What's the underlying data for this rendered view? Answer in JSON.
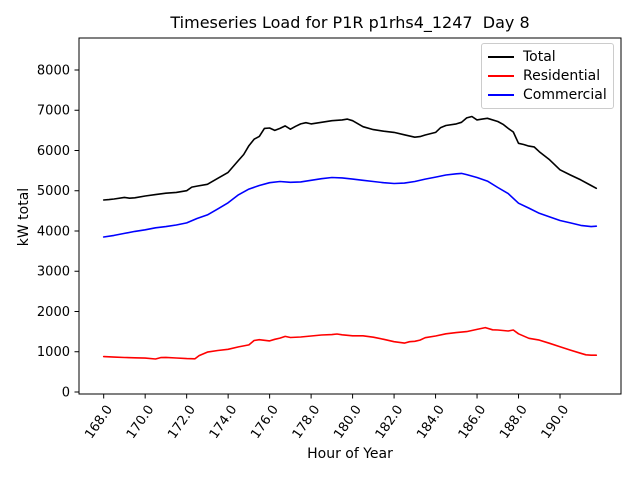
{
  "figure": {
    "title": "Timeseries Load for P1R p1rhs4_1247  Day 8",
    "xlabel": "Hour of Year",
    "ylabel": "kW total"
  },
  "chart_data": {
    "type": "line",
    "title": "Timeseries Load for P1R p1rhs4_1247  Day 8",
    "xlabel": "Hour of Year",
    "ylabel": "kW total",
    "grid": false,
    "legend_position": "upper right",
    "xlim": [
      166.81,
      192.94
    ],
    "ylim": [
      -50,
      8795
    ],
    "xticks": {
      "values": [
        168,
        170,
        172,
        174,
        176,
        178,
        180,
        182,
        184,
        186,
        188,
        190
      ],
      "labels": [
        "168.0",
        "170.0",
        "172.0",
        "174.0",
        "176.0",
        "178.0",
        "180.0",
        "182.0",
        "184.0",
        "186.0",
        "188.0",
        "190.0"
      ],
      "rotation_deg": 55
    },
    "yticks": {
      "values": [
        0,
        1000,
        2000,
        3000,
        4000,
        5000,
        6000,
        7000,
        8000
      ],
      "labels": [
        "0",
        "1000",
        "2000",
        "3000",
        "4000",
        "5000",
        "6000",
        "7000",
        "8000"
      ]
    },
    "series": [
      {
        "name": "Total",
        "color": "#000000",
        "x": [
          168.0,
          168.25,
          168.5,
          169.0,
          169.25,
          169.5,
          170.0,
          170.5,
          171.0,
          171.5,
          172.0,
          172.25,
          172.5,
          173.0,
          173.5,
          174.0,
          174.5,
          174.75,
          175.0,
          175.25,
          175.5,
          175.75,
          176.0,
          176.25,
          176.5,
          176.75,
          177.0,
          177.25,
          177.5,
          177.75,
          178.0,
          178.5,
          179.0,
          179.5,
          179.75,
          180.0,
          180.5,
          181.0,
          181.5,
          182.0,
          182.5,
          183.0,
          183.25,
          183.5,
          184.0,
          184.25,
          184.5,
          185.0,
          185.25,
          185.5,
          185.75,
          186.0,
          186.25,
          186.5,
          187.0,
          187.25,
          187.5,
          187.75,
          188.0,
          188.25,
          188.5,
          188.75,
          189.0,
          189.5,
          190.0,
          190.5,
          191.0,
          191.5,
          191.75
        ],
        "y": [
          4770,
          4780,
          4795,
          4835,
          4815,
          4825,
          4870,
          4905,
          4940,
          4960,
          5000,
          5090,
          5115,
          5160,
          5310,
          5455,
          5755,
          5900,
          6120,
          6280,
          6350,
          6550,
          6560,
          6500,
          6550,
          6610,
          6530,
          6600,
          6660,
          6690,
          6660,
          6700,
          6740,
          6760,
          6780,
          6740,
          6590,
          6520,
          6480,
          6450,
          6390,
          6330,
          6345,
          6385,
          6450,
          6570,
          6620,
          6660,
          6700,
          6810,
          6845,
          6760,
          6780,
          6800,
          6720,
          6650,
          6550,
          6460,
          6180,
          6150,
          6110,
          6090,
          5970,
          5770,
          5520,
          5390,
          5270,
          5130,
          5060
        ]
      },
      {
        "name": "Residential",
        "color": "#ff0000",
        "x": [
          168.0,
          168.5,
          169.0,
          169.5,
          170.0,
          170.5,
          170.75,
          171.0,
          171.5,
          172.0,
          172.4,
          172.6,
          173.0,
          173.5,
          174.0,
          174.5,
          175.0,
          175.25,
          175.5,
          176.0,
          176.25,
          176.5,
          176.75,
          177.0,
          177.5,
          178.0,
          178.5,
          179.0,
          179.25,
          179.5,
          180.0,
          180.5,
          181.0,
          181.5,
          182.0,
          182.5,
          182.75,
          183.0,
          183.25,
          183.5,
          184.0,
          184.5,
          185.0,
          185.5,
          186.0,
          186.4,
          186.75,
          187.0,
          187.5,
          187.75,
          188.0,
          188.5,
          189.0,
          189.5,
          190.0,
          190.5,
          191.0,
          191.25,
          191.5,
          191.75
        ],
        "y": [
          880,
          868,
          858,
          850,
          842,
          820,
          855,
          860,
          845,
          830,
          825,
          905,
          990,
          1030,
          1060,
          1120,
          1170,
          1280,
          1300,
          1270,
          1310,
          1340,
          1380,
          1355,
          1365,
          1390,
          1415,
          1425,
          1440,
          1420,
          1395,
          1395,
          1360,
          1310,
          1250,
          1215,
          1250,
          1260,
          1290,
          1350,
          1390,
          1445,
          1475,
          1500,
          1555,
          1600,
          1545,
          1540,
          1515,
          1540,
          1445,
          1335,
          1290,
          1210,
          1125,
          1040,
          960,
          925,
          915,
          915
        ]
      },
      {
        "name": "Commercial",
        "color": "#0000ff",
        "x": [
          168.0,
          168.5,
          169.0,
          169.5,
          170.0,
          170.5,
          171.0,
          171.5,
          172.0,
          172.5,
          173.0,
          173.5,
          174.0,
          174.5,
          175.0,
          175.5,
          176.0,
          176.5,
          177.0,
          177.5,
          178.0,
          178.5,
          179.0,
          179.5,
          180.0,
          180.5,
          181.0,
          181.5,
          182.0,
          182.5,
          183.0,
          183.5,
          184.0,
          184.5,
          185.0,
          185.25,
          185.5,
          186.0,
          186.5,
          187.0,
          187.5,
          188.0,
          188.5,
          189.0,
          189.5,
          190.0,
          190.5,
          191.0,
          191.5,
          191.75
        ],
        "y": [
          3850,
          3890,
          3940,
          3990,
          4030,
          4080,
          4110,
          4150,
          4200,
          4310,
          4400,
          4550,
          4700,
          4900,
          5040,
          5130,
          5200,
          5230,
          5210,
          5220,
          5260,
          5300,
          5330,
          5320,
          5290,
          5260,
          5230,
          5200,
          5180,
          5190,
          5230,
          5290,
          5340,
          5390,
          5420,
          5430,
          5400,
          5330,
          5240,
          5080,
          4930,
          4690,
          4570,
          4440,
          4350,
          4260,
          4200,
          4140,
          4110,
          4120
        ]
      }
    ]
  }
}
